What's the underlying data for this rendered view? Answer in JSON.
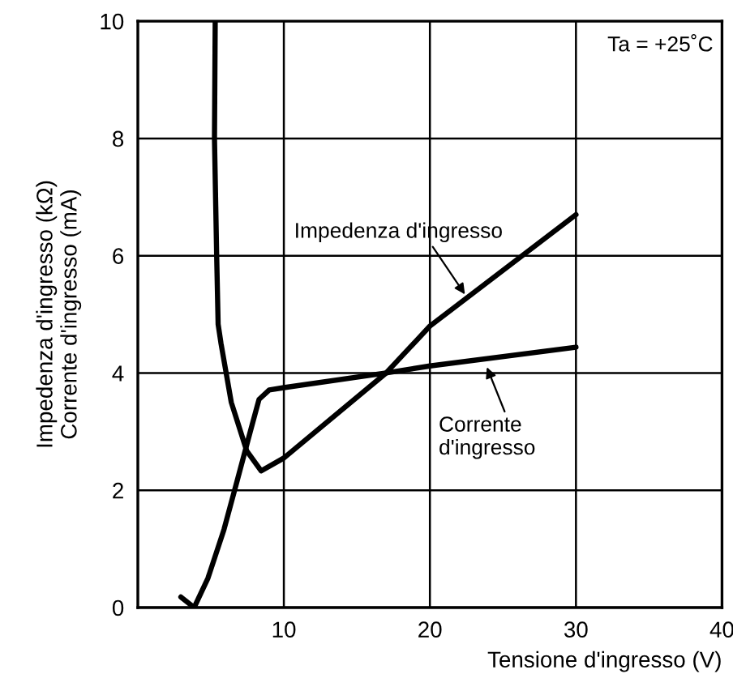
{
  "chart_data": {
    "type": "line",
    "xlabel": "Tensione d'ingresso (V)",
    "ylabel": "Impedenza d'ingresso (kΩ)\nCorrente d'ingresso (mA)",
    "xlim": [
      0,
      40
    ],
    "ylim": [
      0,
      10
    ],
    "xticks": [
      {
        "value": 0,
        "label": null
      },
      10,
      20,
      30,
      40
    ],
    "yticks": [
      0,
      2,
      4,
      6,
      8,
      10
    ],
    "grid": true,
    "legend": false,
    "marker": "none",
    "line_style": "solid",
    "series": [
      {
        "color": "#000000",
        "x": [
          5.3,
          5.25,
          5.4,
          5.5,
          5.7,
          6.4,
          7.46,
          8.45,
          10,
          17,
          20,
          30
        ],
        "values": [
          10,
          8,
          6,
          4.83,
          4.5,
          3.5,
          2.67,
          2.33,
          2.55,
          4.0,
          4.8,
          6.7
        ]
      },
      {
        "color": "#000000",
        "x": [
          2.95,
          3.86,
          4.8,
          5.9,
          6.8,
          7.7,
          8.3,
          9.0,
          10,
          17,
          20,
          30
        ],
        "values": [
          0.18,
          0,
          0.5,
          1.33,
          2.16,
          3.0,
          3.55,
          3.71,
          3.75,
          4.0,
          4.12,
          4.44
        ]
      }
    ],
    "annotations": [
      {
        "text": "Impedenza d'ingresso",
        "x": 22.4,
        "y": 5.34
      },
      {
        "text": "Corrente\nd'ingresso",
        "x": 23.9,
        "y": 4.1
      },
      "Ta = +25˚C"
    ]
  }
}
